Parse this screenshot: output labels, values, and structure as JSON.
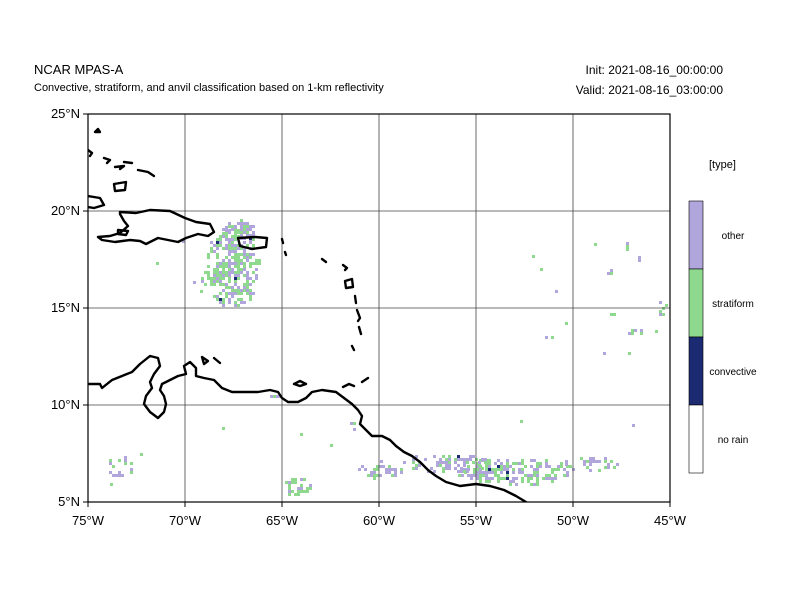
{
  "header": {
    "title": "NCAR MPAS-A",
    "subtitle": "Convective, stratiform, and anvil classification based on 1-km reflectivity",
    "init": "Init: 2021-08-16_00:00:00",
    "valid": "Valid: 2021-08-16_03:00:00"
  },
  "legend": {
    "title": "[type]",
    "items": [
      {
        "label": "other",
        "color": "#b0a6dc"
      },
      {
        "label": "stratiform",
        "color": "#8fd98f"
      },
      {
        "label": "convective",
        "color": "#1c2a72"
      },
      {
        "label": "no rain",
        "color": "#ffffff"
      }
    ]
  },
  "map": {
    "lon_range": [
      -75,
      -45
    ],
    "lat_range": [
      5,
      25
    ],
    "lon_ticks": [
      "75°W",
      "70°W",
      "65°W",
      "60°W",
      "55°W",
      "50°W",
      "45°W"
    ],
    "lat_ticks": [
      "5°N",
      "10°N",
      "15°N",
      "20°N",
      "25°N"
    ],
    "grid": true,
    "colors": {
      "other": "#b0a6dc",
      "stratiform": "#8fd98f",
      "convective": "#1c2a72",
      "coast": "#000000",
      "grid": "#444444"
    }
  }
}
